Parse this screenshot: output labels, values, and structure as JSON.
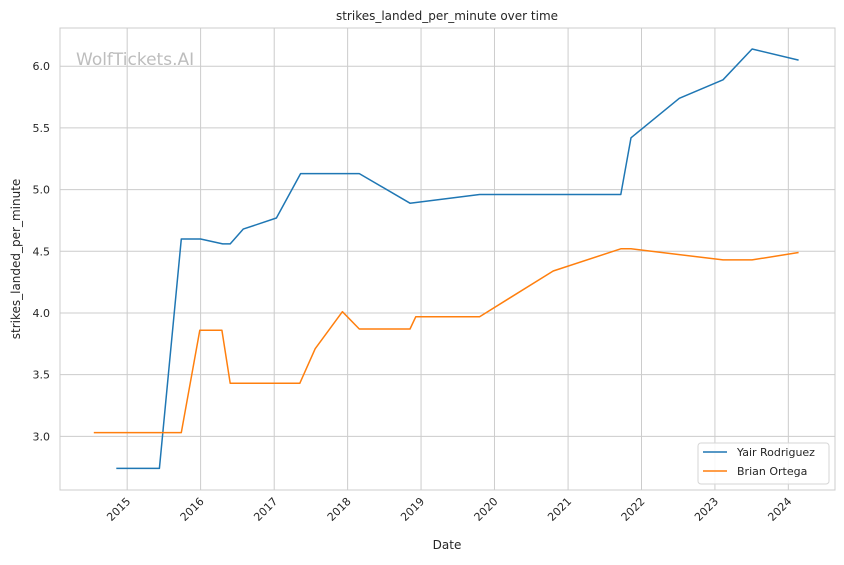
{
  "chart_data": {
    "type": "line",
    "title": "strikes_landed_per_minute over time",
    "xlabel": "Date",
    "ylabel": "strikes_landed_per_minute",
    "watermark": "WolfTickets.AI",
    "xlim": [
      "2014-02-01",
      "2024-08-20"
    ],
    "ylim": [
      2.565,
      6.31
    ],
    "x_ticks": [
      "2015",
      "2016",
      "2017",
      "2018",
      "2019",
      "2020",
      "2021",
      "2022",
      "2023",
      "2024"
    ],
    "y_ticks": [
      "3.0",
      "3.5",
      "4.0",
      "4.5",
      "5.0",
      "5.5",
      "6.0"
    ],
    "grid": true,
    "legend_position": "lower-right",
    "series": [
      {
        "name": "Yair Rodriguez",
        "color": "#1f77b4",
        "points": [
          [
            "2014-11-08",
            2.74
          ],
          [
            "2015-06-10",
            2.74
          ],
          [
            "2015-09-27",
            4.6
          ],
          [
            "2016-01-01",
            4.6
          ],
          [
            "2016-04-20",
            4.56
          ],
          [
            "2016-05-27",
            4.56
          ],
          [
            "2016-07-31",
            4.68
          ],
          [
            "2017-01-12",
            4.77
          ],
          [
            "2017-05-12",
            5.13
          ],
          [
            "2018-02-28",
            5.13
          ],
          [
            "2018-11-07",
            4.89
          ],
          [
            "2019-10-19",
            4.96
          ],
          [
            "2021-09-20",
            4.96
          ],
          [
            "2021-11-10",
            5.42
          ],
          [
            "2022-07-08",
            5.74
          ],
          [
            "2023-02-10",
            5.89
          ],
          [
            "2023-07-05",
            6.14
          ],
          [
            "2024-02-21",
            6.05
          ]
        ]
      },
      {
        "name": "Brian Ortega",
        "color": "#ff7f0e",
        "points": [
          [
            "2014-07-19",
            3.03
          ],
          [
            "2015-09-27",
            3.03
          ],
          [
            "2015-12-28",
            3.86
          ],
          [
            "2016-04-16",
            3.86
          ],
          [
            "2016-05-27",
            3.43
          ],
          [
            "2017-05-08",
            3.43
          ],
          [
            "2017-07-24",
            3.71
          ],
          [
            "2017-12-06",
            4.01
          ],
          [
            "2018-02-28",
            3.87
          ],
          [
            "2018-11-07",
            3.87
          ],
          [
            "2018-12-06",
            3.97
          ],
          [
            "2019-10-19",
            3.97
          ],
          [
            "2020-10-19",
            4.34
          ],
          [
            "2021-09-20",
            4.52
          ],
          [
            "2021-11-10",
            4.52
          ],
          [
            "2023-02-10",
            4.43
          ],
          [
            "2023-07-05",
            4.43
          ],
          [
            "2024-02-21",
            4.49
          ]
        ]
      }
    ]
  }
}
